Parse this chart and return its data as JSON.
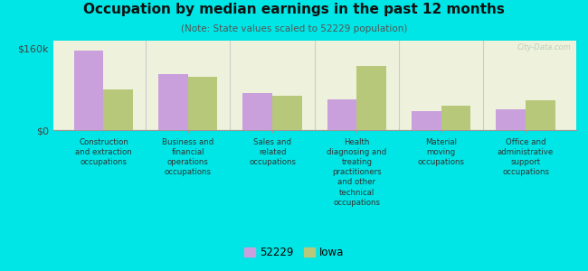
{
  "title": "Occupation by median earnings in the past 12 months",
  "subtitle": "(Note: State values scaled to 52229 population)",
  "categories": [
    "Construction\nand extraction\noccupations",
    "Business and\nfinancial\noperations\noccupations",
    "Sales and\nrelated\noccupations",
    "Health\ndiagnosing and\ntreating\npractitioners\nand other\ntechnical\noccupations",
    "Material\nmoving\noccupations",
    "Office and\nadministrative\nsupport\noccupations"
  ],
  "values_52229": [
    155000,
    110000,
    72000,
    60000,
    38000,
    40000
  ],
  "values_iowa": [
    80000,
    105000,
    68000,
    125000,
    48000,
    58000
  ],
  "ylim": [
    0,
    175000
  ],
  "yticks": [
    0,
    160000
  ],
  "ytick_labels": [
    "$0",
    "$160k"
  ],
  "color_52229": "#c9a0dc",
  "color_iowa": "#b8c87a",
  "background_color": "#00e5e5",
  "plot_bg": "#eef2dc",
  "legend_labels": [
    "52229",
    "Iowa"
  ],
  "watermark": "City-Data.com"
}
